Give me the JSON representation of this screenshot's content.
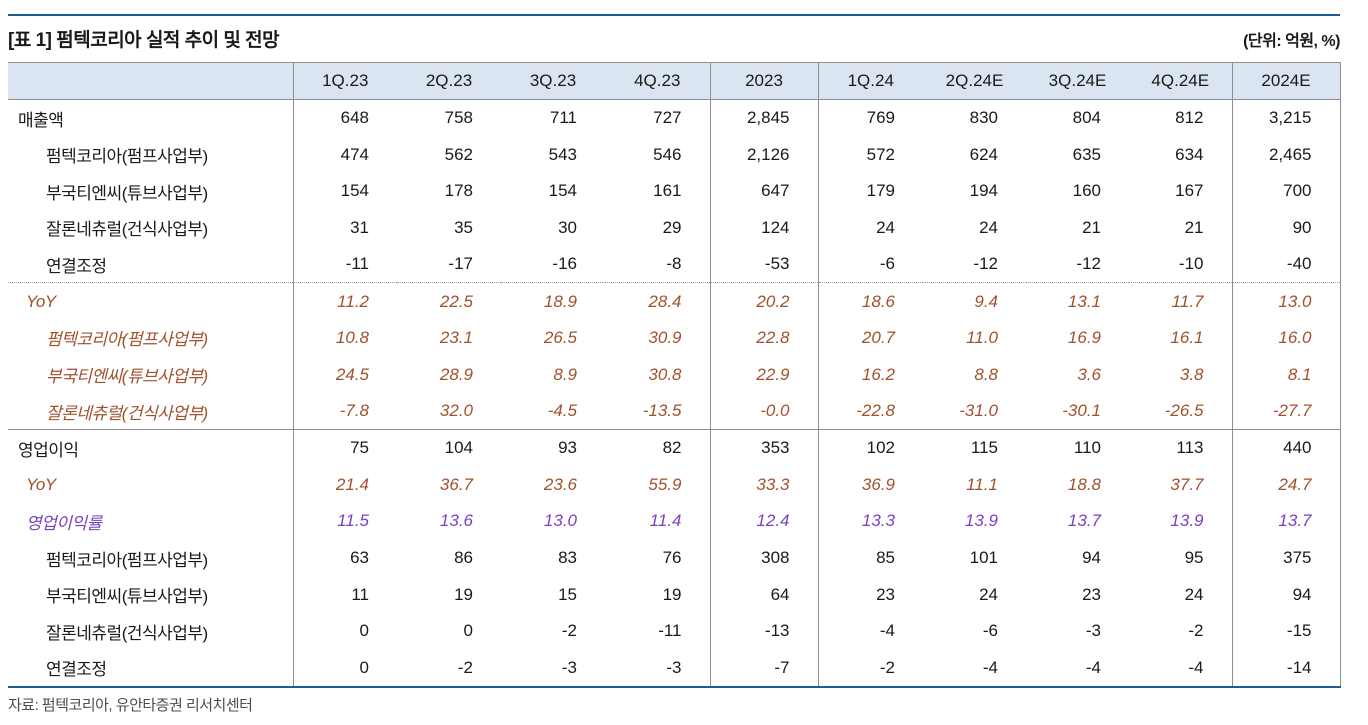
{
  "page": {
    "title": "[표 1] 펌텍코리아 실적 추이 및 전망",
    "unit_label": "(단위: 억원, %)",
    "source": "자료: 펌텍코리아, 유안타증권 리서치센터"
  },
  "colors": {
    "rule_navy": "#1f5b99",
    "header_bg": "#dbe5f1",
    "grid_gray": "#8f8f8f",
    "yoy_text": "#a0522d",
    "margin_text": "#7d3fc1",
    "body_text": "#1a1a1a"
  },
  "chart_data": {
    "type": "table",
    "title": "펌텍코리아 실적 추이 및 전망",
    "unit": "억원, %",
    "columns": [
      "",
      "1Q.23",
      "2Q.23",
      "3Q.23",
      "4Q.23",
      "2023",
      "1Q.24",
      "2Q.24E",
      "3Q.24E",
      "4Q.24E",
      "2024E"
    ],
    "rows": [
      {
        "label": "매출액",
        "style": "base",
        "indent": 0,
        "separator_after": "",
        "values": [
          "648",
          "758",
          "711",
          "727",
          "2,845",
          "769",
          "830",
          "804",
          "812",
          "3,215"
        ]
      },
      {
        "label": "펌텍코리아(펌프사업부)",
        "style": "base",
        "indent": 2,
        "separator_after": "",
        "values": [
          "474",
          "562",
          "543",
          "546",
          "2,126",
          "572",
          "624",
          "635",
          "634",
          "2,465"
        ]
      },
      {
        "label": "부국티엔씨(튜브사업부)",
        "style": "base",
        "indent": 2,
        "separator_after": "",
        "values": [
          "154",
          "178",
          "154",
          "161",
          "647",
          "179",
          "194",
          "160",
          "167",
          "700"
        ]
      },
      {
        "label": "잘론네츄럴(건식사업부)",
        "style": "base",
        "indent": 2,
        "separator_after": "",
        "values": [
          "31",
          "35",
          "30",
          "29",
          "124",
          "24",
          "24",
          "21",
          "21",
          "90"
        ]
      },
      {
        "label": "연결조정",
        "style": "base",
        "indent": 2,
        "separator_after": "dotted",
        "values": [
          "-11",
          "-17",
          "-16",
          "-8",
          "-53",
          "-6",
          "-12",
          "-12",
          "-10",
          "-40"
        ]
      },
      {
        "label": "YoY",
        "style": "yoy",
        "indent": 1,
        "separator_after": "",
        "values": [
          "11.2",
          "22.5",
          "18.9",
          "28.4",
          "20.2",
          "18.6",
          "9.4",
          "13.1",
          "11.7",
          "13.0"
        ]
      },
      {
        "label": "펌텍코리아(펌프사업부)",
        "style": "yoy",
        "indent": 2,
        "separator_after": "",
        "values": [
          "10.8",
          "23.1",
          "26.5",
          "30.9",
          "22.8",
          "20.7",
          "11.0",
          "16.9",
          "16.1",
          "16.0"
        ]
      },
      {
        "label": "부국티엔씨(튜브사업부)",
        "style": "yoy",
        "indent": 2,
        "separator_after": "",
        "values": [
          "24.5",
          "28.9",
          "8.9",
          "30.8",
          "22.9",
          "16.2",
          "8.8",
          "3.6",
          "3.8",
          "8.1"
        ]
      },
      {
        "label": "잘론네츄럴(건식사업부)",
        "style": "yoy",
        "indent": 2,
        "separator_after": "solid",
        "values": [
          "-7.8",
          "32.0",
          "-4.5",
          "-13.5",
          "-0.0",
          "-22.8",
          "-31.0",
          "-30.1",
          "-26.5",
          "-27.7"
        ]
      },
      {
        "label": "영업이익",
        "style": "base",
        "indent": 0,
        "separator_after": "",
        "values": [
          "75",
          "104",
          "93",
          "82",
          "353",
          "102",
          "115",
          "110",
          "113",
          "440"
        ]
      },
      {
        "label": "YoY",
        "style": "yoy",
        "indent": 1,
        "separator_after": "",
        "values": [
          "21.4",
          "36.7",
          "23.6",
          "55.9",
          "33.3",
          "36.9",
          "11.1",
          "18.8",
          "37.7",
          "24.7"
        ]
      },
      {
        "label": "영업이익률",
        "style": "rate",
        "indent": 1,
        "separator_after": "",
        "values": [
          "11.5",
          "13.6",
          "13.0",
          "11.4",
          "12.4",
          "13.3",
          "13.9",
          "13.7",
          "13.9",
          "13.7"
        ]
      },
      {
        "label": "펌텍코리아(펌프사업부)",
        "style": "base",
        "indent": 2,
        "separator_after": "",
        "values": [
          "63",
          "86",
          "83",
          "76",
          "308",
          "85",
          "101",
          "94",
          "95",
          "375"
        ]
      },
      {
        "label": "부국티엔씨(튜브사업부)",
        "style": "base",
        "indent": 2,
        "separator_after": "",
        "values": [
          "11",
          "19",
          "15",
          "19",
          "64",
          "23",
          "24",
          "23",
          "24",
          "94"
        ]
      },
      {
        "label": "잘론네츄럴(건식사업부)",
        "style": "base",
        "indent": 2,
        "separator_after": "",
        "values": [
          "0",
          "0",
          "-2",
          "-11",
          "-13",
          "-4",
          "-6",
          "-3",
          "-2",
          "-15"
        ]
      },
      {
        "label": "연결조정",
        "style": "base",
        "indent": 2,
        "separator_after": "",
        "values": [
          "0",
          "-2",
          "-3",
          "-3",
          "-7",
          "-2",
          "-4",
          "-4",
          "-4",
          "-14"
        ]
      }
    ]
  }
}
